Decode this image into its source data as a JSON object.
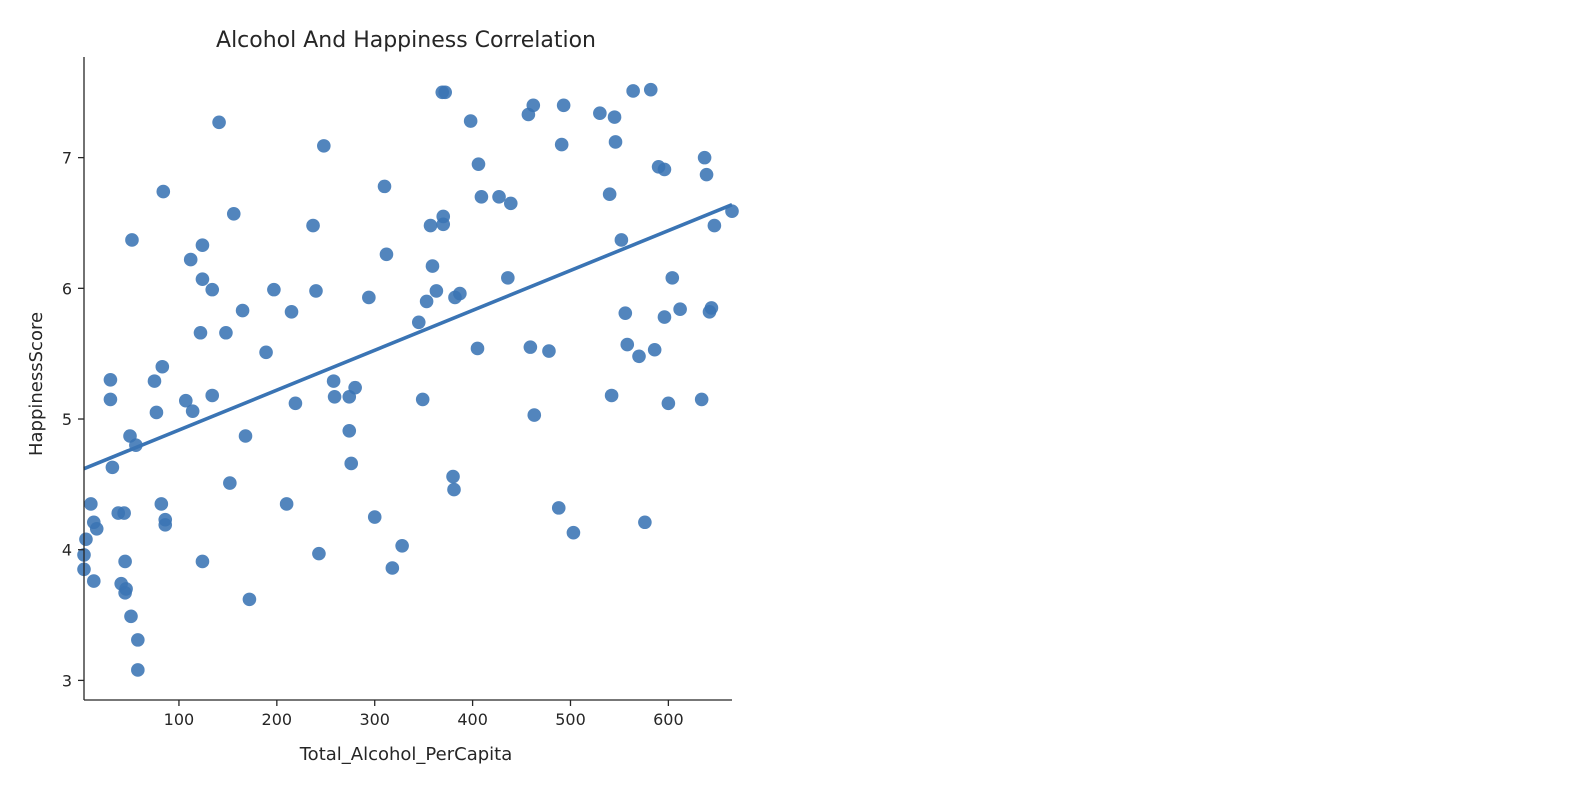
{
  "chart_data": {
    "type": "scatter",
    "title": "Alcohol And Happiness Correlation",
    "xlabel": "Total_Alcohol_PerCapita",
    "ylabel": "HappinessScore",
    "xlim": [
      3,
      665
    ],
    "ylim": [
      2.85,
      7.77
    ],
    "xticks": [
      100,
      200,
      300,
      400,
      500,
      600
    ],
    "yticks": [
      3,
      4,
      5,
      6,
      7
    ],
    "grid": false,
    "color": "#3a74b4",
    "trendline": {
      "x": [
        3,
        665
      ],
      "y": [
        4.62,
        6.64
      ]
    },
    "points": [
      [
        5,
        4.08
      ],
      [
        3,
        3.96
      ],
      [
        3,
        3.85
      ],
      [
        10,
        4.35
      ],
      [
        13,
        4.21
      ],
      [
        13,
        3.76
      ],
      [
        16,
        4.16
      ],
      [
        30,
        5.3
      ],
      [
        30,
        5.15
      ],
      [
        32,
        4.63
      ],
      [
        38,
        4.28
      ],
      [
        41,
        3.74
      ],
      [
        44,
        4.28
      ],
      [
        45,
        3.67
      ],
      [
        45,
        3.91
      ],
      [
        46,
        3.7
      ],
      [
        50,
        4.87
      ],
      [
        51,
        3.49
      ],
      [
        52,
        6.37
      ],
      [
        56,
        4.8
      ],
      [
        58,
        3.31
      ],
      [
        58,
        3.08
      ],
      [
        75,
        5.29
      ],
      [
        77,
        5.05
      ],
      [
        82,
        4.35
      ],
      [
        83,
        5.4
      ],
      [
        84,
        6.74
      ],
      [
        86,
        4.23
      ],
      [
        86,
        4.19
      ],
      [
        107,
        5.14
      ],
      [
        112,
        6.22
      ],
      [
        114,
        5.06
      ],
      [
        122,
        5.66
      ],
      [
        124,
        6.07
      ],
      [
        124,
        6.33
      ],
      [
        124,
        3.91
      ],
      [
        134,
        5.99
      ],
      [
        134,
        5.18
      ],
      [
        141,
        7.27
      ],
      [
        148,
        5.66
      ],
      [
        152,
        4.51
      ],
      [
        156,
        6.57
      ],
      [
        165,
        5.83
      ],
      [
        168,
        4.87
      ],
      [
        172,
        3.62
      ],
      [
        189,
        5.51
      ],
      [
        197,
        5.99
      ],
      [
        210,
        4.35
      ],
      [
        215,
        5.82
      ],
      [
        219,
        5.12
      ],
      [
        237,
        6.48
      ],
      [
        240,
        5.98
      ],
      [
        243,
        3.97
      ],
      [
        248,
        7.09
      ],
      [
        258,
        5.29
      ],
      [
        259,
        5.17
      ],
      [
        274,
        5.17
      ],
      [
        274,
        4.91
      ],
      [
        276,
        4.66
      ],
      [
        280,
        5.24
      ],
      [
        294,
        5.93
      ],
      [
        300,
        4.25
      ],
      [
        310,
        6.78
      ],
      [
        312,
        6.26
      ],
      [
        318,
        3.86
      ],
      [
        328,
        4.03
      ],
      [
        345,
        5.74
      ],
      [
        349,
        5.15
      ],
      [
        353,
        5.9
      ],
      [
        357,
        6.48
      ],
      [
        359,
        6.17
      ],
      [
        363,
        5.98
      ],
      [
        369,
        7.5
      ],
      [
        370,
        6.49
      ],
      [
        370,
        6.55
      ],
      [
        372,
        7.5
      ],
      [
        380,
        4.56
      ],
      [
        381,
        4.46
      ],
      [
        382,
        5.93
      ],
      [
        387,
        5.96
      ],
      [
        398,
        7.28
      ],
      [
        405,
        5.54
      ],
      [
        406,
        6.95
      ],
      [
        409,
        6.7
      ],
      [
        427,
        6.7
      ],
      [
        436,
        6.08
      ],
      [
        439,
        6.65
      ],
      [
        457,
        7.33
      ],
      [
        459,
        5.55
      ],
      [
        462,
        7.4
      ],
      [
        463,
        5.03
      ],
      [
        478,
        5.52
      ],
      [
        488,
        4.32
      ],
      [
        491,
        7.1
      ],
      [
        493,
        7.4
      ],
      [
        503,
        4.13
      ],
      [
        530,
        7.34
      ],
      [
        540,
        6.72
      ],
      [
        542,
        5.18
      ],
      [
        545,
        7.31
      ],
      [
        546,
        7.12
      ],
      [
        552,
        6.37
      ],
      [
        556,
        5.81
      ],
      [
        558,
        5.57
      ],
      [
        564,
        7.51
      ],
      [
        570,
        5.48
      ],
      [
        576,
        4.21
      ],
      [
        582,
        7.52
      ],
      [
        586,
        5.53
      ],
      [
        590,
        6.93
      ],
      [
        596,
        6.91
      ],
      [
        596,
        5.78
      ],
      [
        600,
        5.12
      ],
      [
        604,
        6.08
      ],
      [
        612,
        5.84
      ],
      [
        634,
        5.15
      ],
      [
        637,
        7.0
      ],
      [
        639,
        6.87
      ],
      [
        642,
        5.82
      ],
      [
        644,
        5.85
      ],
      [
        647,
        6.48
      ],
      [
        665,
        6.59
      ]
    ]
  }
}
